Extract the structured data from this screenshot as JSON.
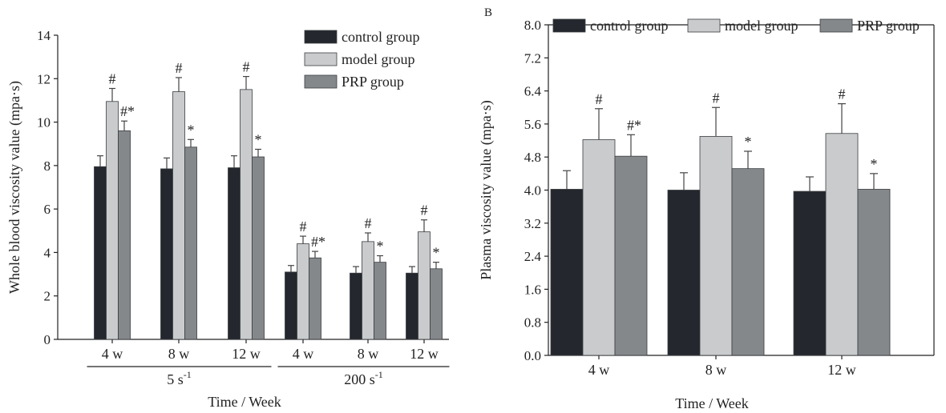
{
  "colors": {
    "control": "#24272d",
    "model": "#c9cbcc",
    "prp": "#84888b",
    "axis": "#222222"
  },
  "chart_data": [
    {
      "type": "bar",
      "panel_label": "",
      "title": "",
      "xlabel": "Time / Week",
      "ylabel": "Whole blood viscosity value (mpa·s)",
      "ylim": [
        0,
        14
      ],
      "yticks": [
        "0",
        "2",
        "4",
        "6",
        "8",
        "10",
        "12",
        "14"
      ],
      "categories": [
        "4 w",
        "8 w",
        "12 w",
        "4 w",
        "8 w",
        "12 w"
      ],
      "category_groups": [
        {
          "label": "5 s",
          "superscript": "-1",
          "from": 0,
          "to": 2
        },
        {
          "label": "200 s",
          "superscript": "-1",
          "from": 3,
          "to": 5
        }
      ],
      "legend_position": "top-right",
      "series": [
        {
          "name": "control group",
          "values": [
            7.95,
            7.85,
            7.9,
            3.1,
            3.05,
            3.05
          ],
          "errors": [
            0.5,
            0.5,
            0.55,
            0.3,
            0.3,
            0.3
          ],
          "annotations": [
            "",
            "",
            "",
            "",
            "",
            ""
          ]
        },
        {
          "name": "model group",
          "values": [
            10.95,
            11.4,
            11.5,
            4.4,
            4.5,
            4.95
          ],
          "errors": [
            0.6,
            0.65,
            0.6,
            0.35,
            0.4,
            0.55
          ],
          "annotations": [
            "#",
            "#",
            "#",
            "#",
            "#",
            "#"
          ]
        },
        {
          "name": "PRP group",
          "values": [
            9.6,
            8.85,
            8.4,
            3.75,
            3.55,
            3.25
          ],
          "errors": [
            0.45,
            0.35,
            0.35,
            0.3,
            0.3,
            0.3
          ],
          "annotations": [
            "#*",
            "*",
            "*",
            "#*",
            "*",
            "*"
          ]
        }
      ]
    },
    {
      "type": "bar",
      "panel_label": "B",
      "title": "",
      "xlabel": "Time / Week",
      "ylabel": "Plasma viscosity value (mpa·s)",
      "ylim": [
        0,
        8
      ],
      "yticks": [
        "0.0",
        "0.8",
        "1.6",
        "2.4",
        "3.2",
        "4.0",
        "4.8",
        "5.6",
        "6.4",
        "7.2",
        "8.0"
      ],
      "categories": [
        "4 w",
        "8 w",
        "12 w"
      ],
      "category_groups": [],
      "legend_position": "top",
      "series": [
        {
          "name": "control group",
          "values": [
            4.02,
            4.0,
            3.97
          ],
          "errors": [
            0.45,
            0.42,
            0.35
          ],
          "annotations": [
            "",
            "",
            ""
          ]
        },
        {
          "name": "model group",
          "values": [
            5.22,
            5.3,
            5.37
          ],
          "errors": [
            0.75,
            0.7,
            0.72
          ],
          "annotations": [
            "#",
            "#",
            "#"
          ]
        },
        {
          "name": "PRP group",
          "values": [
            4.82,
            4.52,
            4.02
          ],
          "errors": [
            0.52,
            0.42,
            0.38
          ],
          "annotations": [
            "#*",
            "*",
            "*"
          ]
        }
      ]
    }
  ]
}
